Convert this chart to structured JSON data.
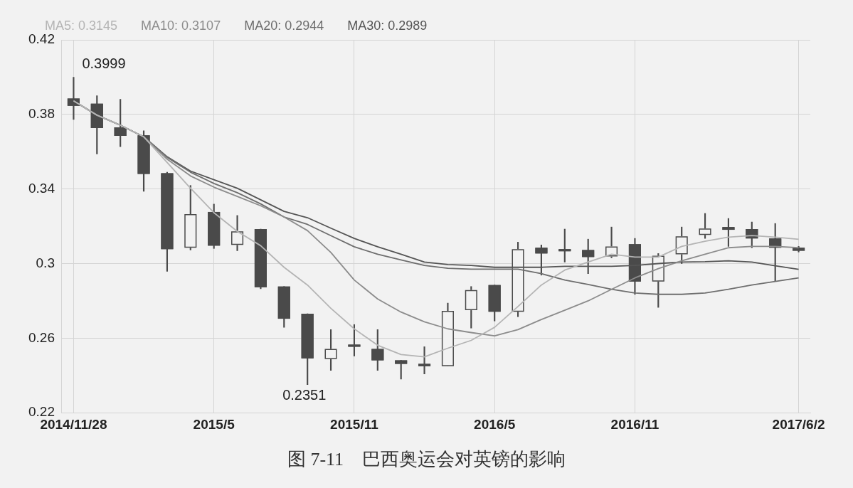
{
  "chart_data": {
    "type": "candlestick",
    "title": "图 7-11　巴西奥运会对英镑的影响",
    "categories": [
      "2014/11/28",
      null,
      null,
      null,
      null,
      null,
      "2015/5",
      null,
      null,
      null,
      null,
      null,
      "2015/11",
      null,
      null,
      null,
      null,
      null,
      "2016/5",
      null,
      null,
      null,
      null,
      null,
      "2016/11",
      null,
      null,
      null,
      null,
      null,
      null,
      "2017/6/2"
    ],
    "series": [
      {
        "type": "line",
        "name": "MA5: 0.3145",
        "color": "#b4b4b4",
        "values": [
          0.3873,
          0.3796,
          0.3742,
          0.368,
          0.3542,
          0.3404,
          0.3273,
          0.3173,
          0.3096,
          0.298,
          0.2885,
          0.276,
          0.265,
          0.2562,
          0.2512,
          0.25,
          0.2546,
          0.2588,
          0.2658,
          0.277,
          0.2885,
          0.2965,
          0.3008,
          0.305,
          0.3035,
          0.3035,
          0.3092,
          0.312,
          0.3142,
          0.315,
          0.3142,
          0.313
        ]
      },
      {
        "type": "line",
        "name": "MA10: 0.3107",
        "color": "#8c8c8c",
        "values": [
          0.3873,
          0.3796,
          0.3742,
          0.368,
          0.356,
          0.347,
          0.341,
          0.336,
          0.331,
          0.325,
          0.3177,
          0.306,
          0.2912,
          0.281,
          0.274,
          0.2688,
          0.265,
          0.263,
          0.2612,
          0.2646,
          0.27,
          0.275,
          0.28,
          0.2862,
          0.2923,
          0.2973,
          0.3015,
          0.305,
          0.3085,
          0.3092,
          0.3092,
          0.3085
        ]
      },
      {
        "type": "line",
        "name": "MA20: 0.2944",
        "color": "#6e6e6e",
        "values": [
          0.3873,
          0.3796,
          0.3742,
          0.368,
          0.357,
          0.349,
          0.343,
          0.338,
          0.332,
          0.325,
          0.321,
          0.315,
          0.309,
          0.305,
          0.302,
          0.299,
          0.2975,
          0.297,
          0.297,
          0.297,
          0.2946,
          0.2912,
          0.2888,
          0.2862,
          0.2842,
          0.2835,
          0.2835,
          0.2842,
          0.2862,
          0.2885,
          0.2904,
          0.2923
        ]
      },
      {
        "type": "line",
        "name": "MA30: 0.2989",
        "color": "#555555",
        "values": [
          0.3873,
          0.3796,
          0.3742,
          0.368,
          0.3573,
          0.3496,
          0.345,
          0.3404,
          0.3342,
          0.328,
          0.3246,
          0.319,
          0.3135,
          0.309,
          0.305,
          0.3008,
          0.2995,
          0.299,
          0.298,
          0.298,
          0.298,
          0.2985,
          0.2985,
          0.2985,
          0.299,
          0.3,
          0.3008,
          0.301,
          0.3015,
          0.3008,
          0.2988,
          0.2969
        ]
      },
      {
        "type": "candlestick",
        "color": "#4a4a4a",
        "colors": [
          "#4a4a4a",
          "#4a4a4a",
          "#4a4a4a",
          "#4a4a4a",
          "#4a4a4a",
          "#f2f2f2",
          "#4a4a4a",
          "#f2f2f2",
          "#4a4a4a",
          "#4a4a4a",
          "#4a4a4a",
          "#f2f2f2",
          "#4a4a4a",
          "#4a4a4a",
          "#4a4a4a",
          "#4a4a4a",
          "#f2f2f2",
          "#f2f2f2",
          "#4a4a4a",
          "#f2f2f2",
          "#4a4a4a",
          "#4a4a4a",
          "#4a4a4a",
          "#f2f2f2",
          "#4a4a4a",
          "#f2f2f2",
          "#f2f2f2",
          "#f2f2f2",
          "#4a4a4a",
          "#4a4a4a",
          "#4a4a4a",
          "#4a4a4a"
        ],
        "ohlc": [
          [
            0.3885,
            0.3999,
            0.3773,
            0.3846
          ],
          [
            0.3858,
            0.39,
            0.3588,
            0.3727
          ],
          [
            0.3731,
            0.3881,
            0.3627,
            0.3685
          ],
          [
            0.3688,
            0.3712,
            0.3388,
            0.3481
          ],
          [
            0.3485,
            0.349,
            0.2958,
            0.3077
          ],
          [
            0.3085,
            0.3419,
            0.3073,
            0.3265
          ],
          [
            0.3277,
            0.3319,
            0.3081,
            0.3096
          ],
          [
            0.31,
            0.3258,
            0.3069,
            0.3173
          ],
          [
            0.3185,
            0.3185,
            0.2865,
            0.2873
          ],
          [
            0.2877,
            0.2877,
            0.2658,
            0.2704
          ],
          [
            0.2731,
            0.2731,
            0.2351,
            0.2492
          ],
          [
            0.2488,
            0.2646,
            0.2427,
            0.2542
          ],
          [
            0.2558,
            0.2673,
            0.2504,
            0.2554
          ],
          [
            0.2542,
            0.2646,
            0.2427,
            0.2481
          ],
          [
            0.2481,
            0.2481,
            0.238,
            0.2462
          ],
          [
            0.2462,
            0.2554,
            0.2408,
            0.245
          ],
          [
            0.245,
            0.2788,
            0.245,
            0.2746
          ],
          [
            0.275,
            0.2877,
            0.2654,
            0.2858
          ],
          [
            0.2885,
            0.2885,
            0.2692,
            0.2742
          ],
          [
            0.2742,
            0.3115,
            0.2715,
            0.3077
          ],
          [
            0.3085,
            0.31,
            0.2938,
            0.3054
          ],
          [
            0.3072,
            0.3185,
            0.3008,
            0.3066
          ],
          [
            0.3073,
            0.3131,
            0.2946,
            0.3035
          ],
          [
            0.3038,
            0.3196,
            0.3031,
            0.3092
          ],
          [
            0.3104,
            0.3135,
            0.2835,
            0.2904
          ],
          [
            0.2904,
            0.3054,
            0.2765,
            0.3042
          ],
          [
            0.305,
            0.3196,
            0.3,
            0.3146
          ],
          [
            0.3154,
            0.3269,
            0.3135,
            0.3188
          ],
          [
            0.3196,
            0.3242,
            0.3092,
            0.3181
          ],
          [
            0.3185,
            0.3223,
            0.3085,
            0.3135
          ],
          [
            0.3135,
            0.3215,
            0.2904,
            0.3085
          ],
          [
            0.3085,
            0.3092,
            0.3062,
            0.3069
          ]
        ]
      }
    ],
    "ylim": [
      0.22,
      0.42
    ],
    "yticks": [
      0.22,
      0.26,
      0.3,
      0.34,
      0.38,
      0.42
    ],
    "annotations": [
      {
        "text": "0.3999",
        "x": "2014/11/28",
        "y": 0.3999
      },
      {
        "text": "0.2351",
        "y": 0.2351
      }
    ],
    "grid": true,
    "legend": "top left",
    "marker": "none"
  }
}
